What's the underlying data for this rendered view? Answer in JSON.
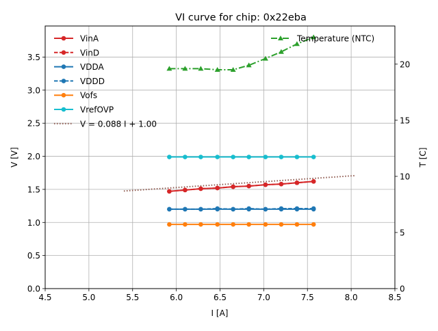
{
  "chart_data": {
    "type": "line",
    "title": "VI curve for chip: 0x22eba",
    "xlabel": "I [A]",
    "ylabel": "V [V]",
    "y2label": "T [C]",
    "xlim": [
      4.5,
      8.5
    ],
    "ylim": [
      0.0,
      3.97
    ],
    "y2lim": [
      0,
      23.4
    ],
    "xticks": [
      "4.5",
      "5.0",
      "5.5",
      "6.0",
      "6.5",
      "7.0",
      "7.5",
      "8.0",
      "8.5"
    ],
    "yticks": [
      "0.0",
      "0.5",
      "1.0",
      "1.5",
      "2.0",
      "2.5",
      "3.0",
      "3.5"
    ],
    "y2ticks": [
      "0",
      "5",
      "10",
      "15",
      "20"
    ],
    "grid": true,
    "x": [
      5.92,
      6.1,
      6.28,
      6.47,
      6.65,
      6.83,
      7.02,
      7.2,
      7.38,
      7.57
    ],
    "series": [
      {
        "name": "VinA",
        "color": "#d62728",
        "style": "solid",
        "axis": "left",
        "values": [
          1.47,
          1.49,
          1.51,
          1.52,
          1.54,
          1.55,
          1.57,
          1.58,
          1.6,
          1.62
        ]
      },
      {
        "name": "VinD",
        "color": "#d62728",
        "style": "dashed",
        "axis": "left",
        "values": [
          1.47,
          1.49,
          1.51,
          1.52,
          1.54,
          1.55,
          1.57,
          1.58,
          1.6,
          1.62
        ]
      },
      {
        "name": "VDDA",
        "color": "#1f77b4",
        "style": "solid",
        "axis": "left",
        "values": [
          1.2,
          1.2,
          1.2,
          1.2,
          1.2,
          1.2,
          1.2,
          1.2,
          1.2,
          1.2
        ]
      },
      {
        "name": "VDDD",
        "color": "#1f77b4",
        "style": "dashed",
        "axis": "left",
        "values": [
          1.2,
          1.2,
          1.2,
          1.21,
          1.2,
          1.21,
          1.2,
          1.21,
          1.21,
          1.21
        ]
      },
      {
        "name": "Vofs",
        "color": "#ff7f0e",
        "style": "solid",
        "axis": "left",
        "values": [
          0.97,
          0.97,
          0.97,
          0.97,
          0.97,
          0.97,
          0.97,
          0.97,
          0.97,
          0.97
        ]
      },
      {
        "name": "VrefOVP",
        "color": "#17becf",
        "style": "solid",
        "axis": "left",
        "values": [
          1.99,
          1.99,
          1.99,
          1.99,
          1.99,
          1.99,
          1.99,
          1.99,
          1.99,
          1.99
        ]
      }
    ],
    "fit": {
      "name": "V = 0.088 I + 1.00",
      "color": "#8c564b",
      "style": "dotted",
      "slope": 0.088,
      "intercept": 1.0,
      "x_range": [
        5.4,
        8.05
      ]
    },
    "temperature": {
      "name": "Temperature (NTC)",
      "color": "#2ca02c",
      "style": "dashdot",
      "axis": "right",
      "values": [
        19.6,
        19.6,
        19.6,
        19.5,
        19.5,
        19.9,
        20.5,
        21.1,
        21.8,
        22.4
      ]
    },
    "legend_left": "top-left",
    "legend_right": "top-right"
  }
}
